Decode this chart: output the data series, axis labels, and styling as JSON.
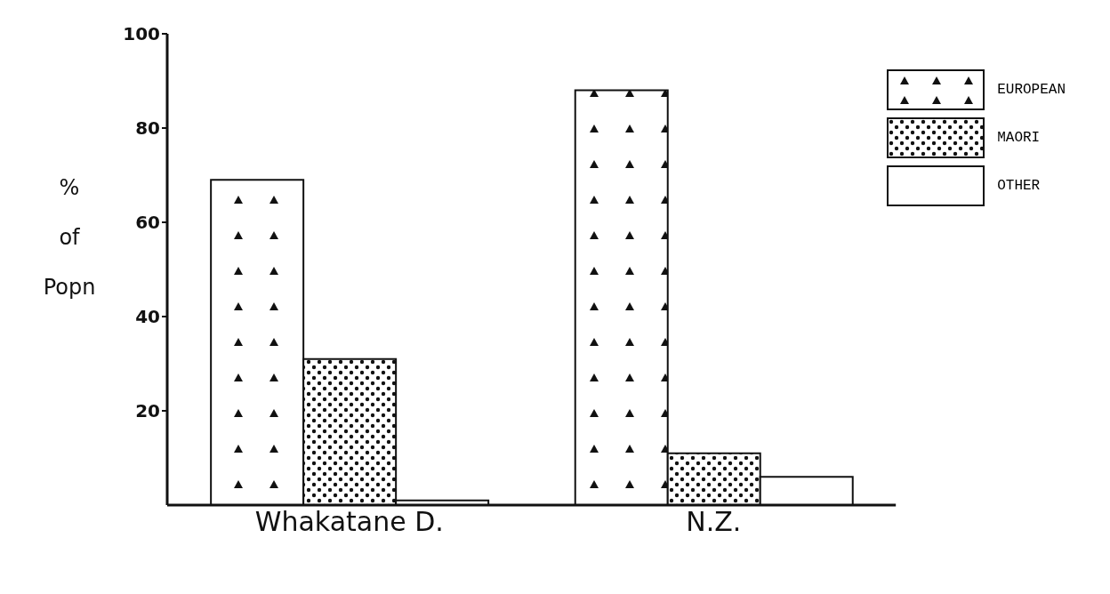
{
  "chart_data": {
    "type": "bar",
    "ylabel": "% of Popn",
    "categories": [
      "Whakatane D.",
      "N.Z."
    ],
    "series": [
      {
        "name": "EUROPEAN",
        "color": "#ffffff",
        "values": [
          69,
          88
        ]
      },
      {
        "name": "MAORI",
        "color": "#ffffff",
        "values": [
          31,
          11
        ]
      },
      {
        "name": "OTHER",
        "color": "#ffffff",
        "values": [
          1,
          6
        ]
      }
    ],
    "ylim": [
      0,
      100
    ],
    "yticks": [
      20,
      40,
      60,
      80,
      100
    ],
    "grid": false,
    "legend": "top right"
  }
}
